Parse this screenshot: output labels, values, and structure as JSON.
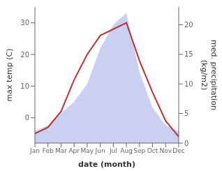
{
  "chart_data": {
    "type": "line",
    "categories": [
      "Jan",
      "Feb",
      "Mar",
      "Apr",
      "May",
      "Jun",
      "Jul",
      "Aug",
      "Sep",
      "Oct",
      "Nov",
      "Dec"
    ],
    "series": [
      {
        "type": "area",
        "color": "#c0c8ee",
        "axis": "y2",
        "values": [
          2,
          3,
          5,
          7,
          10,
          16,
          20,
          22,
          12,
          6,
          3,
          2
        ]
      },
      {
        "type": "line",
        "color": "#c03030",
        "values": [
          -5,
          -3,
          2,
          12,
          20,
          26,
          28,
          30,
          18,
          8,
          -1,
          -6
        ]
      }
    ],
    "xlabel": "date (month)",
    "ylabel": "max temp (C)",
    "y2label": "med. precipitation\n(kg/m2)",
    "ylim": [
      -8,
      35
    ],
    "yticks": [
      0,
      10,
      20,
      30
    ],
    "y2lim": [
      0,
      23
    ],
    "y2ticks": [
      0,
      5,
      10,
      15,
      20
    ],
    "grid": false
  }
}
